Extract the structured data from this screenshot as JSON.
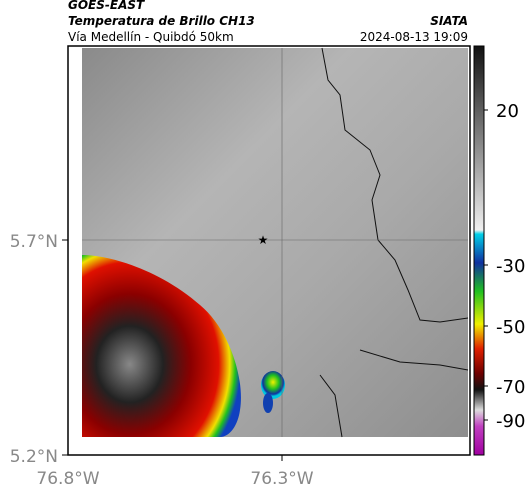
{
  "header": {
    "source": "GOES-EAST",
    "title": "Temperatura de Brillo CH13",
    "subtitle": "Vía Medellín - Quibdó 50km",
    "agency": "SIATA",
    "datetime": "2024-08-13 19:09"
  },
  "map": {
    "lat_labels": [
      "5.7°N",
      "5.2°N"
    ],
    "lon_labels": [
      "76.8°W",
      "76.3°W"
    ]
  },
  "colorbar": {
    "ticks": [
      20,
      -30,
      -50,
      -70,
      -90
    ]
  }
}
